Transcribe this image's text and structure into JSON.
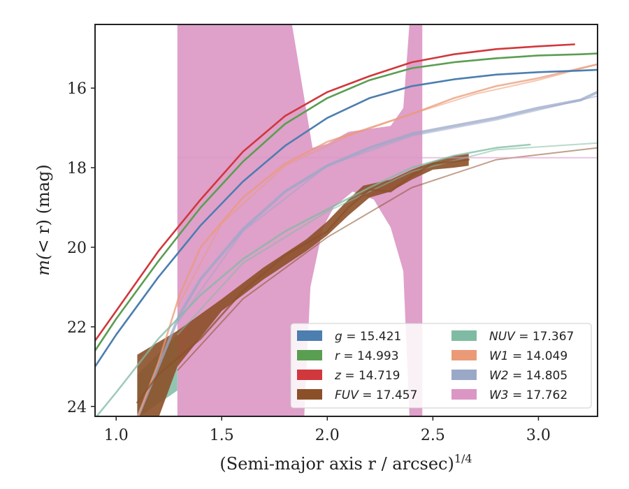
{
  "chart_data": {
    "type": "line",
    "xlabel": "(Semi-major axis r / arcsec)",
    "xlabel_sup": "1/4",
    "ylabel_prefix": "m(",
    "ylabel_mid": "< r",
    "ylabel_suffix": ") (mag)",
    "xlim": [
      0.9,
      3.28
    ],
    "ylim": [
      24.25,
      14.4
    ],
    "y_inverted": true,
    "xticks": [
      1.0,
      1.5,
      2.0,
      2.5,
      3.0
    ],
    "xtick_labels": [
      "1.0",
      "1.5",
      "2.0",
      "2.5",
      "3.0"
    ],
    "yticks": [
      16,
      18,
      20,
      22,
      24
    ],
    "ytick_labels": [
      "16",
      "18",
      "20",
      "22",
      "24"
    ],
    "legend_position": "bottom-right",
    "legend": [
      {
        "var": "g",
        "label": " = 15.421",
        "color": "#4c7eaf"
      },
      {
        "var": "r",
        "label": " = 14.993",
        "color": "#5a9e52"
      },
      {
        "var": "z",
        "label": " = 14.719",
        "color": "#d0383d"
      },
      {
        "var": "FUV",
        "label": " = 17.457",
        "color": "#8c5029"
      },
      {
        "var": "NUV",
        "label": " = 17.367",
        "color": "#7fbba3"
      },
      {
        "var": "W1",
        "label": " = 14.049",
        "color": "#eb9a78"
      },
      {
        "var": "W2",
        "label": " = 14.805",
        "color": "#9aa8c8"
      },
      {
        "var": "W3",
        "label": " = 17.762",
        "color": "#db96c4"
      }
    ],
    "series": [
      {
        "name": "g",
        "color": "#4c7eaf",
        "x": [
          0.9,
          1.0,
          1.2,
          1.4,
          1.6,
          1.8,
          2.0,
          2.2,
          2.4,
          2.6,
          2.8,
          3.0,
          3.2,
          3.28
        ],
        "y": [
          23.0,
          22.2,
          20.75,
          19.45,
          18.35,
          17.45,
          16.75,
          16.25,
          15.95,
          15.78,
          15.66,
          15.6,
          15.56,
          15.54
        ]
      },
      {
        "name": "r",
        "color": "#5a9e52",
        "x": [
          0.9,
          1.0,
          1.2,
          1.4,
          1.6,
          1.8,
          2.0,
          2.2,
          2.4,
          2.6,
          2.8,
          3.0,
          3.2,
          3.28
        ],
        "y": [
          22.6,
          21.8,
          20.35,
          19.0,
          17.85,
          16.9,
          16.25,
          15.8,
          15.5,
          15.35,
          15.25,
          15.18,
          15.15,
          15.13
        ]
      },
      {
        "name": "z",
        "color": "#d0383d",
        "x": [
          0.9,
          1.0,
          1.2,
          1.4,
          1.6,
          1.8,
          2.0,
          2.2,
          2.4,
          2.6,
          2.8,
          3.0,
          3.17
        ],
        "y": [
          22.35,
          21.6,
          20.1,
          18.8,
          17.6,
          16.7,
          16.1,
          15.7,
          15.35,
          15.15,
          15.02,
          14.95,
          14.9
        ]
      },
      {
        "name": "NUV",
        "color": "#7fbba3",
        "x": [
          0.9,
          1.0,
          1.2,
          1.4,
          1.6,
          1.8,
          2.0,
          2.2,
          2.4,
          2.6,
          2.8,
          2.96
        ],
        "y": [
          24.3,
          23.65,
          22.3,
          21.2,
          20.3,
          19.6,
          19.05,
          18.5,
          18.0,
          17.7,
          17.5,
          17.42
        ]
      },
      {
        "name": "FUV",
        "color": "#8c5029",
        "x": [
          1.1,
          1.2,
          1.4,
          1.6,
          1.8,
          2.0,
          2.1,
          2.2,
          2.3,
          2.4,
          2.5,
          2.6,
          2.67
        ],
        "y": [
          23.9,
          23.2,
          22.3,
          21.1,
          20.2,
          19.6,
          19.0,
          18.55,
          18.6,
          18.2,
          17.9,
          17.85,
          17.8
        ]
      },
      {
        "name": "W1",
        "color": "#eb9a78",
        "x": [
          1.1,
          1.2,
          1.3,
          1.4,
          1.6,
          1.8,
          2.0,
          2.2,
          2.4,
          2.6,
          2.8,
          3.0,
          3.2,
          3.28
        ],
        "y": [
          24.3,
          22.9,
          21.2,
          20.0,
          18.75,
          17.9,
          17.35,
          17.0,
          16.65,
          16.25,
          15.95,
          15.75,
          15.5,
          15.4
        ]
      },
      {
        "name": "W2",
        "color": "#9aa8c8",
        "x": [
          1.1,
          1.2,
          1.3,
          1.4,
          1.6,
          1.8,
          2.0,
          2.2,
          2.4,
          2.6,
          2.8,
          3.0,
          3.2,
          3.28
        ],
        "y": [
          24.3,
          23.0,
          21.7,
          20.8,
          19.55,
          18.6,
          17.95,
          17.5,
          17.15,
          16.95,
          16.75,
          16.5,
          16.3,
          16.1
        ]
      },
      {
        "name": "W3",
        "color": "#db96c4",
        "x": [
          1.29,
          1.5,
          1.7,
          1.85,
          1.92,
          2.0,
          2.1,
          2.2,
          2.3,
          2.38,
          2.45,
          2.6,
          2.8,
          3.0,
          3.28
        ],
        "y": [
          17.75,
          17.75,
          17.75,
          17.75,
          17.6,
          17.45,
          17.3,
          17.2,
          17.0,
          16.9,
          17.75,
          17.75,
          17.75,
          17.75,
          17.75
        ]
      }
    ]
  }
}
